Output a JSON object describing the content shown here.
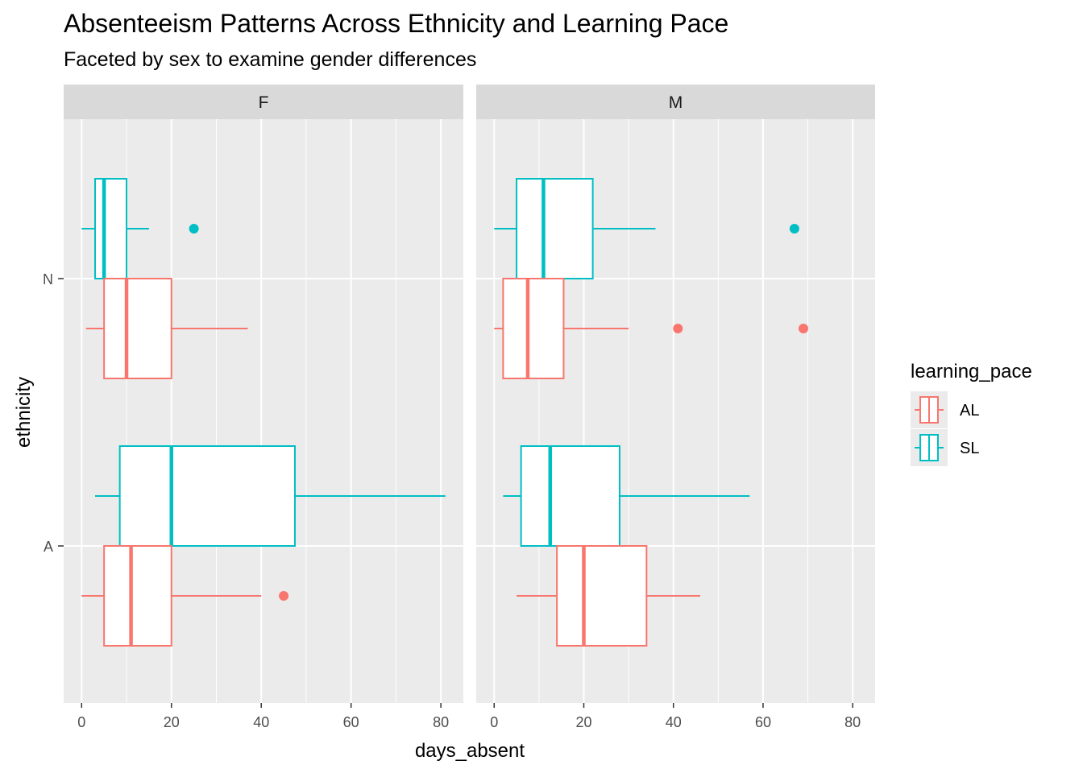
{
  "chart_data": {
    "type": "boxplot",
    "title": "Absenteeism Patterns Across Ethnicity and Learning Pace",
    "subtitle": "Faceted by sex to examine gender differences",
    "xlabel": "days_absent",
    "ylabel": "ethnicity",
    "xlim": [
      -4,
      85
    ],
    "x_ticks": [
      0,
      20,
      40,
      60,
      80
    ],
    "categories": [
      "N",
      "A"
    ],
    "facets": [
      "F",
      "M"
    ],
    "legend": {
      "title": "learning_pace",
      "placement": "right",
      "entries": [
        {
          "label": "AL",
          "color": "#F8766D"
        },
        {
          "label": "SL",
          "color": "#00BFC4"
        }
      ]
    },
    "grid": true,
    "colors": {
      "AL": "#F8766D",
      "SL": "#00BFC4"
    },
    "boxes": [
      {
        "facet": "F",
        "ethnicity": "N",
        "learning_pace": "SL",
        "whisker_low": 0,
        "q1": 3,
        "median": 5,
        "q3": 10,
        "whisker_high": 15,
        "outliers": [
          25
        ]
      },
      {
        "facet": "F",
        "ethnicity": "N",
        "learning_pace": "AL",
        "whisker_low": 1,
        "q1": 5,
        "median": 10,
        "q3": 20,
        "whisker_high": 37,
        "outliers": []
      },
      {
        "facet": "F",
        "ethnicity": "A",
        "learning_pace": "SL",
        "whisker_low": 3,
        "q1": 8.5,
        "median": 20,
        "q3": 47.5,
        "whisker_high": 81,
        "outliers": []
      },
      {
        "facet": "F",
        "ethnicity": "A",
        "learning_pace": "AL",
        "whisker_low": 0,
        "q1": 5,
        "median": 11,
        "q3": 20,
        "whisker_high": 40,
        "outliers": [
          45
        ]
      },
      {
        "facet": "M",
        "ethnicity": "N",
        "learning_pace": "SL",
        "whisker_low": 0,
        "q1": 5,
        "median": 11,
        "q3": 22,
        "whisker_high": 36,
        "outliers": [
          67
        ]
      },
      {
        "facet": "M",
        "ethnicity": "N",
        "learning_pace": "AL",
        "whisker_low": 0,
        "q1": 2,
        "median": 7.5,
        "q3": 15.5,
        "whisker_high": 30,
        "outliers": [
          41,
          69
        ]
      },
      {
        "facet": "M",
        "ethnicity": "A",
        "learning_pace": "SL",
        "whisker_low": 2,
        "q1": 6,
        "median": 12.5,
        "q3": 28,
        "whisker_high": 57,
        "outliers": []
      },
      {
        "facet": "M",
        "ethnicity": "A",
        "learning_pace": "AL",
        "whisker_low": 5,
        "q1": 14,
        "median": 20,
        "q3": 34,
        "whisker_high": 46,
        "outliers": []
      }
    ]
  }
}
